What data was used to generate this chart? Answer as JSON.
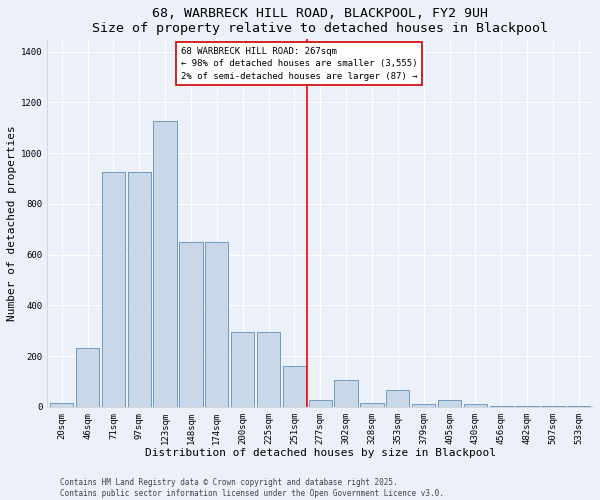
{
  "title": "68, WARBRECK HILL ROAD, BLACKPOOL, FY2 9UH",
  "subtitle": "Size of property relative to detached houses in Blackpool",
  "xlabel": "Distribution of detached houses by size in Blackpool",
  "ylabel": "Number of detached properties",
  "bar_labels": [
    "20sqm",
    "46sqm",
    "71sqm",
    "97sqm",
    "123sqm",
    "148sqm",
    "174sqm",
    "200sqm",
    "225sqm",
    "251sqm",
    "277sqm",
    "302sqm",
    "328sqm",
    "353sqm",
    "379sqm",
    "405sqm",
    "430sqm",
    "456sqm",
    "482sqm",
    "507sqm",
    "533sqm"
  ],
  "bar_values": [
    15,
    230,
    925,
    925,
    1125,
    650,
    650,
    295,
    295,
    160,
    25,
    105,
    15,
    65,
    10,
    25,
    10,
    3,
    3,
    3,
    2
  ],
  "bar_color": "#c8d8e8",
  "bar_edge_color": "#6090b8",
  "annotation_text_line1": "68 WARBRECK HILL ROAD: 267sqm",
  "annotation_text_line2": "← 98% of detached houses are smaller (3,555)",
  "annotation_text_line3": "2% of semi-detached houses are larger (87) →",
  "annotation_box_color": "#ffffff",
  "annotation_box_edge_color": "#cc0000",
  "red_line_x": 10.5,
  "ylim": [
    0,
    1450
  ],
  "yticks": [
    0,
    200,
    400,
    600,
    800,
    1000,
    1200,
    1400
  ],
  "bg_color": "#ecf0f8",
  "plot_bg_color": "#ecf0f8",
  "footer": "Contains HM Land Registry data © Crown copyright and database right 2025.\nContains public sector information licensed under the Open Government Licence v3.0.",
  "title_fontsize": 9.5,
  "xlabel_fontsize": 8,
  "ylabel_fontsize": 8,
  "tick_fontsize": 6.5,
  "footer_fontsize": 5.5,
  "ann_fontsize": 6.5
}
